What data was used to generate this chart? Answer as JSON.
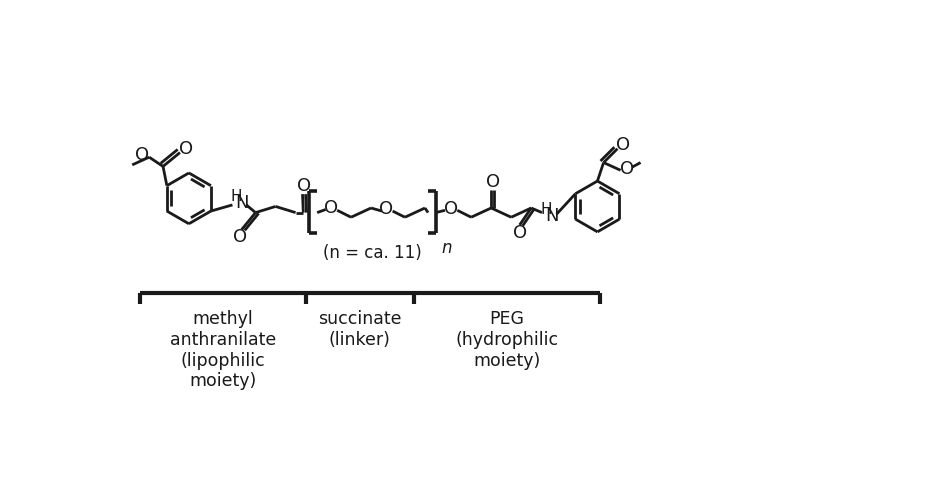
{
  "background_color": "#ffffff",
  "line_color": "#1a1a1a",
  "line_width": 2.0,
  "font_family": "DejaVu Sans",
  "label_fontsize": 13,
  "annotation_fontsize": 12.5,
  "n_label": "(n = ca. 11)",
  "bracket_label_1": "methyl\nanthranilate\n(lipophilic\nmoiety)",
  "bracket_label_2": "succinate\n(linker)",
  "bracket_label_3": "PEG\n(hydrophilic\nmoiety)"
}
